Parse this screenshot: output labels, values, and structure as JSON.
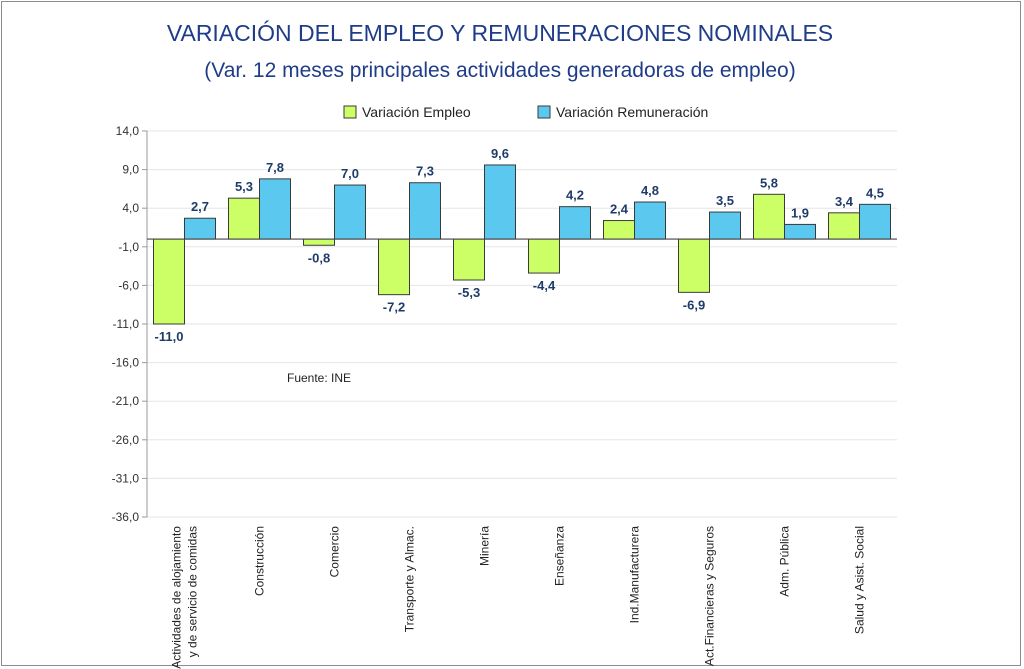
{
  "chart_data": {
    "type": "bar",
    "title": "VARIACIÓN DEL EMPLEO Y REMUNERACIONES NOMINALES",
    "subtitle": "(Var. 12 meses principales actividades generadoras de empleo)",
    "source_note": "Fuente: INE",
    "categories": [
      [
        "Actividades de alojamiento",
        "y de servicio de comidas"
      ],
      [
        "Construcción"
      ],
      [
        "Comercio"
      ],
      [
        "Transporte y Almac."
      ],
      [
        "Minería"
      ],
      [
        "Enseñanza"
      ],
      [
        "Ind.Manufacturera"
      ],
      [
        "Act.Financieras y Seguros"
      ],
      [
        "Adm. Pública"
      ],
      [
        "Salud y Asist. Social"
      ]
    ],
    "series": [
      {
        "name": "Variación Empleo",
        "color": "#ccff66",
        "values": [
          -11.0,
          5.3,
          -0.8,
          -7.2,
          -5.3,
          -4.4,
          2.4,
          -6.9,
          5.8,
          3.4
        ],
        "labels": [
          "-11,0",
          "5,3",
          "-0,8",
          "-7,2",
          "-5,3",
          "-4,4",
          "2,4",
          "-6,9",
          "5,8",
          "3,4"
        ]
      },
      {
        "name": "Variación Remuneración",
        "color": "#5bc8f0",
        "values": [
          2.7,
          7.8,
          7.0,
          7.3,
          9.6,
          4.2,
          4.8,
          3.5,
          1.9,
          4.5
        ],
        "labels": [
          "2,7",
          "7,8",
          "7,0",
          "7,3",
          "9,6",
          "4,2",
          "4,8",
          "3,5",
          "1,9",
          "4,5"
        ]
      }
    ],
    "y_ticks": [
      14,
      9,
      4,
      -1,
      -6,
      -11,
      -16,
      -21,
      -26,
      -31,
      -36
    ],
    "y_tick_labels": [
      "14,0",
      "9,0",
      "4,0",
      "-1,0",
      "-6,0",
      "-11,0",
      "-16,0",
      "-21,0",
      "-26,0",
      "-31,0",
      "-36,0"
    ],
    "ylim": [
      -36,
      14
    ],
    "grid": true,
    "legend_position": "top-center",
    "title_color": "#1f3c88",
    "label_color": "#1f3c68"
  }
}
